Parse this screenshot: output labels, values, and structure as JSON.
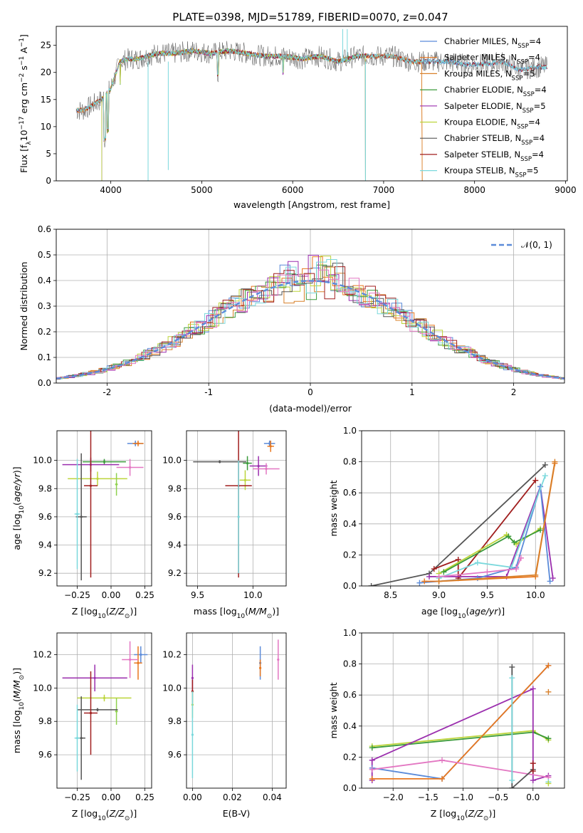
{
  "figure_title": "PLATE=0398, MJD=51789, FIBERID=0070, z=0.047",
  "colors": {
    "Chabrier MILES": "#5b8bd9",
    "Salpeter MILES": "#e8771e",
    "Kroupa MILES": "#d8802a",
    "Chabrier ELODIE": "#3a9a3a",
    "Salpeter ELODIE": "#9b2fae",
    "Kroupa ELODIE": "#bcd43a",
    "Chabrier STELIB": "#555555",
    "Salpeter STELIB": "#a01e1e",
    "Kroupa STELIB": "#7ad8dc",
    "normal": "#5b8bd9",
    "extra_pink": "#e377c2",
    "extra_green": "#8fd14f"
  },
  "chart_data": [
    {
      "id": "spectrum",
      "type": "line",
      "title": "PLATE=0398, MJD=51789, FIBERID=0070, z=0.047",
      "xlabel": "wavelength [Angstrom, rest frame]",
      "ylabel": "Flux [f_λ 10^-17 erg cm^-2 s^-1 A^-1]",
      "xlim": [
        3400,
        9020
      ],
      "ylim": [
        0,
        28.5
      ],
      "xticks": [
        4000,
        5000,
        6000,
        7000,
        8000,
        9000
      ],
      "yticks": [
        0,
        5,
        10,
        15,
        20,
        25
      ],
      "grid": false,
      "legend_position": "top-right",
      "continuum": [
        [
          3620,
          13
        ],
        [
          3700,
          13
        ],
        [
          3800,
          14
        ],
        [
          3900,
          15
        ],
        [
          4000,
          17
        ],
        [
          4100,
          22
        ],
        [
          4200,
          22.5
        ],
        [
          4300,
          22.5
        ],
        [
          4400,
          23
        ],
        [
          4500,
          23.5
        ],
        [
          4700,
          23.5
        ],
        [
          4900,
          24
        ],
        [
          5100,
          23.5
        ],
        [
          5300,
          24
        ],
        [
          5500,
          23.5
        ],
        [
          5700,
          23
        ],
        [
          5900,
          23
        ],
        [
          6100,
          22.5
        ],
        [
          6300,
          23
        ],
        [
          6500,
          22
        ],
        [
          6700,
          23
        ],
        [
          6900,
          23
        ],
        [
          7100,
          23
        ],
        [
          7300,
          22
        ],
        [
          7500,
          22
        ],
        [
          7700,
          22
        ],
        [
          7900,
          21.5
        ],
        [
          8100,
          21.5
        ],
        [
          8300,
          22
        ],
        [
          8500,
          20.5
        ],
        [
          8700,
          21
        ],
        [
          8800,
          21
        ]
      ],
      "series": [
        {
          "name": "Chabrier MILES, N_SSP=4",
          "legend_label": "Chabrier MILES, N",
          "legend_sub": "SSP",
          "legend_n": "=4"
        },
        {
          "name": "Salpeter MILES, N_SSP=4",
          "legend_label": "Salpeter MILES, N",
          "legend_sub": "SSP",
          "legend_n": "=4"
        },
        {
          "name": "Kroupa MILES, N_SSP=5",
          "legend_label": "Kroupa MILES, N",
          "legend_sub": "SSP",
          "legend_n": "=5"
        },
        {
          "name": "Chabrier ELODIE, N_SSP=4",
          "legend_label": "Chabrier ELODIE, N",
          "legend_sub": "SSP",
          "legend_n": "=4"
        },
        {
          "name": "Salpeter ELODIE, N_SSP=5",
          "legend_label": "Salpeter ELODIE, N",
          "legend_sub": "SSP",
          "legend_n": "=5"
        },
        {
          "name": "Kroupa ELODIE, N_SSP=4",
          "legend_label": "Kroupa ELODIE, N",
          "legend_sub": "SSP",
          "legend_n": "=4"
        },
        {
          "name": "Chabrier STELIB, N_SSP=4",
          "legend_label": "Chabrier STELIB, N",
          "legend_sub": "SSP",
          "legend_n": "=4"
        },
        {
          "name": "Salpeter STELIB, N_SSP=4",
          "legend_label": "Salpeter STELIB, N",
          "legend_sub": "SSP",
          "legend_n": "=4"
        },
        {
          "name": "Kroupa STELIB, N_SSP=5",
          "legend_label": "Kroupa STELIB, N",
          "legend_sub": "SSP",
          "legend_n": "=5"
        }
      ]
    },
    {
      "id": "residuals",
      "type": "histogram",
      "xlabel": "(data-model)/error",
      "ylabel": "Normed distribution",
      "xlim": [
        -2.5,
        2.5
      ],
      "ylim": [
        0,
        0.6
      ],
      "xticks": [
        -2,
        -1,
        0,
        1,
        2
      ],
      "yticks": [
        0.0,
        0.1,
        0.2,
        0.3,
        0.4,
        0.5,
        0.6
      ],
      "grid": true,
      "legend_position": "top-right",
      "legend_label": "𝒩(0, 1)"
    },
    {
      "id": "age_vs_Z",
      "type": "scatter",
      "xlabel": "Z [log10(Z/Z⊙)]",
      "ylabel": "age [log10(age/yr)]",
      "xlim": [
        -0.4,
        0.3
      ],
      "ylim": [
        9.11,
        10.21
      ],
      "xticks": [
        -0.25,
        0.0,
        0.25
      ],
      "yticks": [
        9.2,
        9.4,
        9.6,
        9.8,
        10.0
      ],
      "grid": true,
      "points": [
        {
          "x": 0.18,
          "y": 10.12,
          "xerr": 0.06,
          "yerr": 0.02,
          "c": "Chabrier MILES"
        },
        {
          "x": 0.2,
          "y": 10.12,
          "xerr": 0.04,
          "yerr": 0.02,
          "c": "Salpeter MILES"
        },
        {
          "x": -0.05,
          "y": 9.99,
          "xerr": 0.16,
          "yerr": 0.02,
          "c": "Chabrier ELODIE"
        },
        {
          "x": 0.14,
          "y": 9.95,
          "xerr": 0.1,
          "yerr": 0.06,
          "c": "extra_pink"
        },
        {
          "x": -0.15,
          "y": 9.97,
          "xerr": 0.21,
          "yerr": 0.05,
          "c": "Salpeter ELODIE"
        },
        {
          "x": -0.1,
          "y": 9.87,
          "xerr": 0.22,
          "yerr": 0.05,
          "c": "Kroupa ELODIE"
        },
        {
          "x": 0.04,
          "y": 9.83,
          "xerr": 0.01,
          "yerr": 0.08,
          "c": "extra_green"
        },
        {
          "x": -0.22,
          "y": 9.6,
          "xerr": 0.04,
          "yerr": 0.45,
          "c": "Chabrier STELIB"
        },
        {
          "x": -0.15,
          "y": 9.82,
          "xerr": 0.05,
          "yerr": 0.65,
          "c": "Salpeter STELIB"
        },
        {
          "x": -0.25,
          "y": 9.62,
          "xerr": 0.02,
          "yerr": 0.39,
          "c": "Kroupa STELIB"
        }
      ]
    },
    {
      "id": "age_vs_mass",
      "type": "scatter",
      "xlabel": "mass [log10(M/M⊙)]",
      "ylabel": "",
      "xlim": [
        9.4,
        10.3
      ],
      "ylim": [
        9.11,
        10.21
      ],
      "xticks": [
        9.5,
        10.0
      ],
      "yticks": [
        9.2,
        9.4,
        9.6,
        9.8,
        10.0
      ],
      "grid": true,
      "points": [
        {
          "x": 10.15,
          "y": 10.12,
          "xerr": 0.05,
          "yerr": 0.02,
          "c": "Chabrier MILES"
        },
        {
          "x": 10.16,
          "y": 10.1,
          "xerr": 0.03,
          "yerr": 0.04,
          "c": "Salpeter MILES"
        },
        {
          "x": 9.7,
          "y": 9.99,
          "xerr": 0.24,
          "yerr": 0.01,
          "c": "Chabrier STELIB"
        },
        {
          "x": 9.95,
          "y": 9.98,
          "xerr": 0.04,
          "yerr": 0.05,
          "c": "Chabrier ELODIE"
        },
        {
          "x": 10.05,
          "y": 9.96,
          "xerr": 0.08,
          "yerr": 0.07,
          "c": "Salpeter ELODIE"
        },
        {
          "x": 10.12,
          "y": 9.94,
          "xerr": 0.12,
          "yerr": 0.04,
          "c": "extra_pink"
        },
        {
          "x": 9.93,
          "y": 9.86,
          "xerr": 0.05,
          "yerr": 0.07,
          "c": "Kroupa ELODIE"
        },
        {
          "x": 9.87,
          "y": 9.82,
          "xerr": 0.12,
          "yerr": 0.65,
          "c": "Salpeter STELIB"
        },
        {
          "x": 9.87,
          "y": 9.6,
          "xerr": 0.01,
          "yerr": 0.4,
          "c": "Kroupa STELIB"
        }
      ]
    },
    {
      "id": "massweight_vs_age",
      "type": "line",
      "xlabel": "age [log10(age/yr)]",
      "ylabel": "mass weight",
      "xlim": [
        8.2,
        10.3
      ],
      "ylim": [
        0.0,
        1.0
      ],
      "xticks": [
        8.5,
        9.0,
        9.5,
        10.0
      ],
      "yticks": [
        0.0,
        0.2,
        0.4,
        0.6,
        0.8,
        1.0
      ],
      "grid": true,
      "series": [
        {
          "c": "Chabrier STELIB",
          "x": [
            8.3,
            8.9,
            10.1
          ],
          "y": [
            0.0,
            0.08,
            0.78
          ]
        },
        {
          "c": "Salpeter STELIB",
          "x": [
            8.95,
            9.2,
            9.2,
            10.0
          ],
          "y": [
            0.11,
            0.17,
            0.05,
            0.68
          ]
        },
        {
          "c": "Salpeter ELODIE",
          "x": [
            8.9,
            9.7,
            10.05,
            10.18
          ],
          "y": [
            0.06,
            0.06,
            0.64,
            0.05
          ]
        },
        {
          "c": "Kroupa ELODIE",
          "x": [
            9.0,
            9.7,
            9.8,
            10.05
          ],
          "y": [
            0.08,
            0.33,
            0.27,
            0.37
          ]
        },
        {
          "c": "Chabrier ELODIE",
          "x": [
            9.05,
            9.72,
            9.78,
            10.05
          ],
          "y": [
            0.09,
            0.32,
            0.28,
            0.36
          ]
        },
        {
          "c": "Chabrier MILES",
          "x": [
            8.8,
            9.4,
            9.8,
            10.05,
            10.15
          ],
          "y": [
            0.02,
            0.05,
            0.12,
            0.64,
            0.03
          ]
        },
        {
          "c": "Kroupa STELIB",
          "x": [
            9.0,
            9.4,
            9.75,
            10.1
          ],
          "y": [
            0.05,
            0.15,
            0.12,
            0.71
          ]
        },
        {
          "c": "extra_pink",
          "x": [
            9.0,
            9.5,
            9.8,
            9.85
          ],
          "y": [
            0.06,
            0.09,
            0.11,
            0.18
          ]
        },
        {
          "c": "Salpeter MILES",
          "x": [
            8.85,
            9.0,
            10.0,
            10.2
          ],
          "y": [
            0.03,
            0.03,
            0.06,
            0.79
          ]
        },
        {
          "c": "Kroupa MILES",
          "x": [
            9.0,
            10.0,
            10.2
          ],
          "y": [
            0.03,
            0.07,
            0.8
          ]
        }
      ]
    },
    {
      "id": "mass_vs_Z",
      "type": "scatter",
      "xlabel": "Z [log10(Z/Z⊙)]",
      "ylabel": "mass [log10(M/M⊙)]",
      "xlim": [
        -0.4,
        0.3
      ],
      "ylim": [
        9.4,
        10.33
      ],
      "xticks": [
        -0.25,
        0.0,
        0.25
      ],
      "yticks": [
        9.6,
        9.8,
        10.0,
        10.2
      ],
      "grid": true,
      "points": [
        {
          "x": 0.22,
          "y": 10.2,
          "xerr": 0.05,
          "yerr": 0.05,
          "c": "Chabrier MILES"
        },
        {
          "x": 0.2,
          "y": 10.15,
          "xerr": 0.03,
          "yerr": 0.1,
          "c": "Salpeter MILES"
        },
        {
          "x": 0.14,
          "y": 10.17,
          "xerr": 0.06,
          "yerr": 0.11,
          "c": "extra_pink"
        },
        {
          "x": -0.12,
          "y": 10.06,
          "xerr": 0.24,
          "yerr": 0.08,
          "c": "Salpeter ELODIE"
        },
        {
          "x": -0.05,
          "y": 9.94,
          "xerr": 0.2,
          "yerr": 0.02,
          "c": "Kroupa ELODIE"
        },
        {
          "x": 0.04,
          "y": 9.86,
          "xerr": 0.01,
          "yerr": 0.08,
          "c": "extra_green"
        },
        {
          "x": -0.1,
          "y": 9.87,
          "xerr": 0.15,
          "yerr": 0.01,
          "c": "Chabrier STELIB"
        },
        {
          "x": -0.15,
          "y": 9.85,
          "xerr": 0.05,
          "yerr": 0.25,
          "c": "Salpeter STELIB"
        },
        {
          "x": -0.22,
          "y": 9.7,
          "xerr": 0.03,
          "yerr": 0.25,
          "c": "Chabrier STELIB"
        },
        {
          "x": -0.25,
          "y": 9.7,
          "xerr": 0.02,
          "yerr": 0.2,
          "c": "Kroupa STELIB"
        }
      ]
    },
    {
      "id": "mass_vs_ebv",
      "type": "scatter",
      "xlabel": "E(B-V)",
      "ylabel": "",
      "xlim": [
        -0.003,
        0.047
      ],
      "ylim": [
        9.4,
        10.33
      ],
      "xticks": [
        0.0,
        0.02,
        0.04
      ],
      "yticks": [
        9.6,
        9.8,
        10.0,
        10.2
      ],
      "grid": true,
      "points": [
        {
          "x": 0.0,
          "y": 10.06,
          "yerr": 0.08,
          "c": "Salpeter ELODIE"
        },
        {
          "x": 0.0,
          "y": 9.98,
          "yerr": 0.07,
          "c": "Salpeter STELIB"
        },
        {
          "x": 0.0,
          "y": 9.9,
          "yerr": 0.08,
          "c": "Kroupa ELODIE"
        },
        {
          "x": 0.0,
          "y": 9.72,
          "yerr": 0.26,
          "c": "Kroupa STELIB"
        },
        {
          "x": 0.034,
          "y": 10.15,
          "yerr": 0.1,
          "c": "Chabrier MILES"
        },
        {
          "x": 0.034,
          "y": 10.12,
          "yerr": 0.05,
          "c": "Salpeter MILES"
        },
        {
          "x": 0.043,
          "y": 10.17,
          "yerr": 0.12,
          "c": "extra_pink"
        }
      ]
    },
    {
      "id": "massweight_vs_Z",
      "type": "line",
      "xlabel": "Z [log10(Z/Z⊙)]",
      "ylabel": "mass weight",
      "xlim": [
        -2.45,
        0.45
      ],
      "ylim": [
        0.0,
        1.0
      ],
      "xticks": [
        -2.0,
        -1.5,
        -1.0,
        -0.5,
        0.0
      ],
      "yticks": [
        0.0,
        0.2,
        0.4,
        0.6,
        0.8,
        1.0
      ],
      "grid": true,
      "series": [
        {
          "c": "Kroupa ELODIE",
          "x": [
            -2.3,
            0.0,
            0.22
          ],
          "y": [
            0.27,
            0.37,
            0.31
          ]
        },
        {
          "c": "Chabrier ELODIE",
          "x": [
            -2.3,
            0.0,
            0.22
          ],
          "y": [
            0.26,
            0.36,
            0.32
          ]
        },
        {
          "c": "Salpeter ELODIE",
          "x": [
            -2.3,
            -2.3,
            0.0,
            0.0,
            0.22
          ],
          "y": [
            0.05,
            0.18,
            0.64,
            0.05,
            0.08
          ]
        },
        {
          "c": "Chabrier MILES",
          "x": [
            -2.3,
            -1.3,
            0.22
          ],
          "y": [
            0.13,
            0.06,
            0.79
          ]
        },
        {
          "c": "Salpeter MILES",
          "x": [
            -2.3,
            -1.3,
            0.22
          ],
          "y": [
            0.06,
            0.06,
            0.79
          ]
        },
        {
          "c": "extra_pink",
          "x": [
            -2.3,
            -1.3,
            0.22
          ],
          "y": [
            0.12,
            0.18,
            0.07
          ]
        },
        {
          "c": "Chabrier STELIB",
          "x": [
            -0.3,
            -0.3,
            0.0
          ],
          "y": [
            0.78,
            0.0,
            0.12
          ]
        },
        {
          "c": "Salpeter STELIB",
          "x": [
            0.0,
            0.0
          ],
          "y": [
            0.11,
            0.16
          ]
        },
        {
          "c": "Kroupa STELIB",
          "x": [
            -0.3,
            -0.3
          ],
          "y": [
            0.71,
            0.05
          ]
        }
      ],
      "markers": [
        {
          "c": "Kroupa MILES",
          "x": 0.22,
          "y": 0.62
        },
        {
          "c": "Kroupa STELIB",
          "x": 0.22,
          "y": 0.04
        },
        {
          "c": "Kroupa ELODIE",
          "x": 0.22,
          "y": 0.03
        }
      ]
    }
  ]
}
